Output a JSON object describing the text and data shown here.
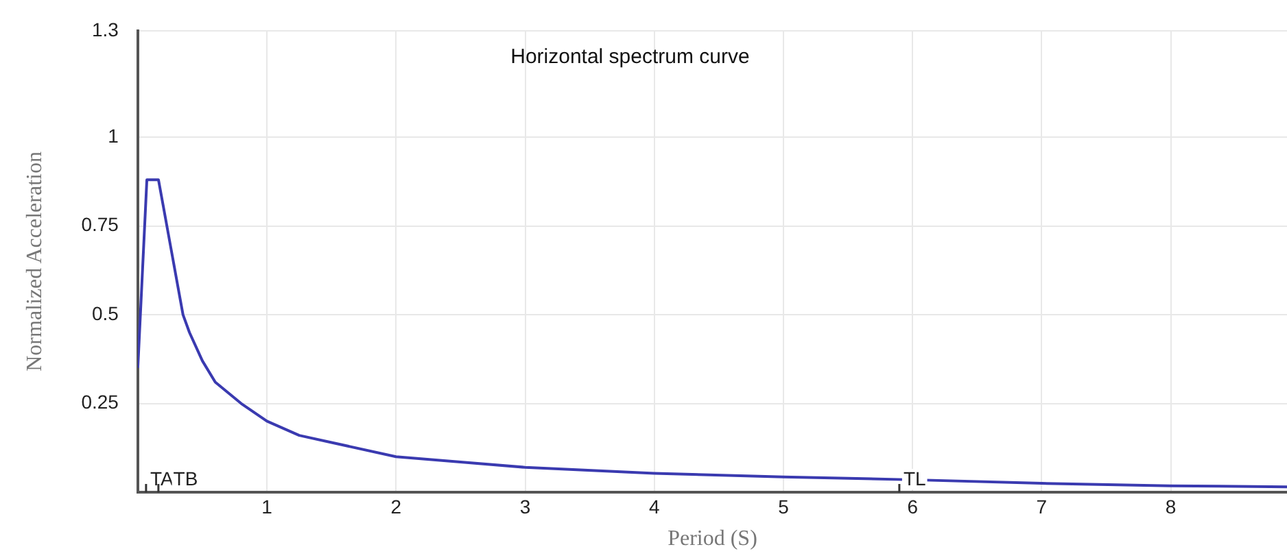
{
  "chart_data": {
    "type": "line",
    "title": "Horizontal spectrum curve",
    "xlabel": "Period (S)",
    "ylabel": "Normalized Acceleration",
    "series": [
      {
        "color": "#3a3ab0",
        "x": [
          0,
          0.07,
          0.16,
          0.2,
          0.25,
          0.3,
          0.35,
          0.4,
          0.5,
          0.6,
          0.8,
          1,
          1.25,
          1.5,
          2,
          2.5,
          3,
          4,
          5,
          6,
          7,
          8,
          8.9
        ],
        "values": [
          0.35,
          0.88,
          0.88,
          0.8,
          0.7,
          0.6,
          0.5,
          0.45,
          0.37,
          0.31,
          0.25,
          0.2,
          0.16,
          0.14,
          0.1,
          0.085,
          0.07,
          0.053,
          0.043,
          0.035,
          0.025,
          0.018,
          0.015
        ]
      }
    ],
    "xlim": [
      0,
      8.9
    ],
    "xticks": [
      1,
      2,
      3,
      4,
      5,
      6,
      7,
      8
    ],
    "ylim": [
      0,
      1.3
    ],
    "yticks": [
      0.25,
      0.5,
      0.75,
      1,
      1.3
    ],
    "grid": true,
    "legend": false,
    "marker": "none",
    "line_style": "solid",
    "annotations": [
      "TA",
      "TB",
      "TL"
    ]
  }
}
